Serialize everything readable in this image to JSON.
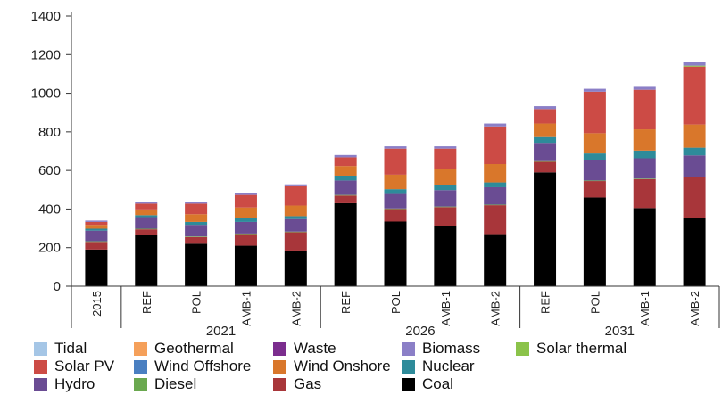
{
  "chart_data": {
    "type": "stacked-bar",
    "title": "",
    "xlabel": "",
    "ylabel": "",
    "ylim": [
      0,
      1400
    ],
    "yticks": [
      0,
      200,
      400,
      600,
      800,
      1000,
      1200,
      1400
    ],
    "ytick_labels": [
      "0",
      "200",
      "400",
      "600",
      "800",
      "1000",
      "1200",
      "1400"
    ],
    "grid": false,
    "legend_position": "bottom",
    "categories": [
      "2015",
      "REF",
      "POL",
      "AMB-1",
      "AMB-2",
      "REF",
      "POL",
      "AMB-1",
      "AMB-2",
      "REF",
      "POL",
      "AMB-1",
      "AMB-2"
    ],
    "groups": [
      {
        "label": "",
        "categories": [
          "2015"
        ]
      },
      {
        "label": "2021",
        "categories": [
          "REF",
          "POL",
          "AMB-1",
          "AMB-2"
        ]
      },
      {
        "label": "2026",
        "categories": [
          "REF",
          "POL",
          "AMB-1",
          "AMB-2"
        ]
      },
      {
        "label": "2031",
        "categories": [
          "REF",
          "POL",
          "AMB-1",
          "AMB-2"
        ]
      }
    ],
    "series": [
      {
        "name": "Coal",
        "color": "#000000",
        "values": [
          190,
          265,
          220,
          210,
          185,
          430,
          335,
          310,
          270,
          590,
          460,
          405,
          355
        ]
      },
      {
        "name": "Gas",
        "color": "#a8363a",
        "values": [
          40,
          30,
          35,
          60,
          95,
          40,
          65,
          100,
          150,
          55,
          85,
          150,
          210
        ]
      },
      {
        "name": "Diesel",
        "color": "#6aa84f",
        "values": [
          3,
          3,
          3,
          3,
          3,
          3,
          3,
          3,
          3,
          3,
          3,
          3,
          3
        ]
      },
      {
        "name": "Hydro",
        "color": "#6a4c93",
        "values": [
          55,
          60,
          60,
          60,
          65,
          75,
          75,
          85,
          90,
          95,
          105,
          105,
          110
        ]
      },
      {
        "name": "Nuclear",
        "color": "#2e8b9a",
        "values": [
          10,
          10,
          15,
          20,
          15,
          25,
          25,
          25,
          25,
          30,
          35,
          40,
          40
        ]
      },
      {
        "name": "Wind Onshore",
        "color": "#d9772b",
        "values": [
          20,
          30,
          40,
          55,
          55,
          50,
          75,
          85,
          95,
          70,
          105,
          110,
          120
        ]
      },
      {
        "name": "Wind Offshore",
        "color": "#4a7fc1",
        "values": [
          0,
          0,
          0,
          0,
          0,
          0,
          0,
          0,
          0,
          0,
          0,
          0,
          0
        ]
      },
      {
        "name": "Solar PV",
        "color": "#cc4b45",
        "values": [
          15,
          30,
          55,
          65,
          100,
          45,
          135,
          105,
          195,
          75,
          215,
          205,
          300
        ]
      },
      {
        "name": "Solar thermal",
        "color": "#8bc34a",
        "values": [
          0,
          0,
          0,
          0,
          0,
          0,
          0,
          0,
          0,
          0,
          0,
          0,
          5
        ]
      },
      {
        "name": "Biomass",
        "color": "#8b7fc7",
        "values": [
          7,
          10,
          9,
          10,
          10,
          12,
          12,
          12,
          15,
          15,
          15,
          15,
          20
        ]
      },
      {
        "name": "Waste",
        "color": "#7b2d8e",
        "values": [
          0,
          0,
          0,
          0,
          0,
          0,
          0,
          0,
          0,
          0,
          0,
          0,
          0
        ]
      },
      {
        "name": "Geothermal",
        "color": "#f5a05a",
        "values": [
          0,
          0,
          0,
          0,
          0,
          0,
          0,
          0,
          0,
          0,
          0,
          0,
          0
        ]
      },
      {
        "name": "Tidal",
        "color": "#a5c6e6",
        "values": [
          0,
          0,
          0,
          0,
          0,
          0,
          0,
          0,
          0,
          0,
          0,
          0,
          0
        ]
      }
    ],
    "legend": [
      [
        "Tidal",
        "Geothermal",
        "Waste",
        "Biomass",
        "Solar thermal"
      ],
      [
        "Solar PV",
        "Wind Offshore",
        "Wind Onshore",
        "Nuclear"
      ],
      [
        "Hydro",
        "Diesel",
        "Gas",
        "Coal"
      ]
    ]
  }
}
